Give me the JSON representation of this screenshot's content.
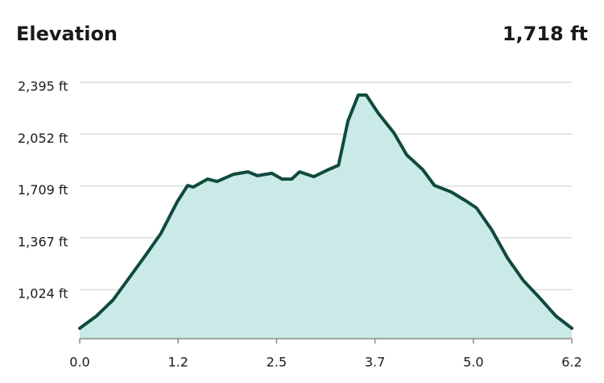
{
  "chart_data": {
    "type": "area",
    "title": "Elevation",
    "annotation": "1,718 ft",
    "x": [
      0,
      0.21,
      0.42,
      0.62,
      0.82,
      1.02,
      1.23,
      1.36,
      1.43,
      1.61,
      1.73,
      1.94,
      2.12,
      2.24,
      2.42,
      2.55,
      2.67,
      2.77,
      2.95,
      3.14,
      3.26,
      3.38,
      3.51,
      3.61,
      3.76,
      3.96,
      4.12,
      4.32,
      4.47,
      4.68,
      4.88,
      5.0,
      5.19,
      5.39,
      5.59,
      5.8,
      6.0,
      6.2
    ],
    "values": [
      769,
      849,
      956,
      1100,
      1244,
      1393,
      1606,
      1713,
      1702,
      1755,
      1739,
      1787,
      1803,
      1777,
      1793,
      1755,
      1755,
      1803,
      1771,
      1819,
      1846,
      2139,
      2310,
      2310,
      2192,
      2059,
      1915,
      1819,
      1713,
      1670,
      1606,
      1564,
      1420,
      1233,
      1084,
      967,
      849,
      769
    ],
    "color": "#0f4a3d",
    "fill": "#c9eae6",
    "xlim": [
      0,
      6.2
    ],
    "ylim": [
      700,
      2395
    ],
    "xticks": [
      {
        "value": 0,
        "label": "0.0"
      },
      {
        "value": 1.24,
        "label": "1.2"
      },
      {
        "value": 2.48,
        "label": "2.5"
      },
      {
        "value": 3.72,
        "label": "3.7"
      },
      {
        "value": 4.96,
        "label": "5.0"
      },
      6.2
    ],
    "yticks": [
      {
        "value": 1024,
        "label": "1,024 ft"
      },
      {
        "value": 1367,
        "label": "1,367 ft"
      },
      {
        "value": 1709,
        "label": "1,709 ft"
      },
      {
        "value": 2052,
        "label": "2,052 ft"
      },
      {
        "value": 2395,
        "label": "2,395 ft"
      }
    ],
    "grid": true
  }
}
